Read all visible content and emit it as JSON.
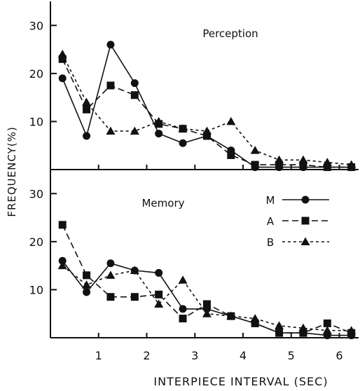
{
  "chart_data": [
    {
      "type": "line",
      "title": "Perception",
      "xlabel": "INTERPIECE INTERVAL (SEC)",
      "ylabel": "FREQUENCY(%)",
      "xlim": [
        0,
        6.4
      ],
      "ylim": [
        0,
        35
      ],
      "yticks": [
        10,
        20,
        30
      ],
      "xticks": [
        1,
        2,
        3,
        4,
        5,
        6
      ],
      "grid": false,
      "legend": "none",
      "series": [
        {
          "name": "M",
          "marker": "circle",
          "dash": "solid",
          "x": [
            0.25,
            0.75,
            1.25,
            1.75,
            2.25,
            2.75,
            3.25,
            3.75,
            4.25,
            4.75,
            5.25,
            5.75,
            6.25
          ],
          "y": [
            19,
            7,
            26,
            18,
            7.5,
            5.5,
            7,
            4,
            0.5,
            0.5,
            0.5,
            0.5,
            0.5
          ]
        },
        {
          "name": "A",
          "marker": "square",
          "dash": "dashed",
          "x": [
            0.25,
            0.75,
            1.25,
            1.75,
            2.25,
            2.75,
            3.25,
            3.75,
            4.25,
            4.75,
            5.25,
            5.75,
            6.25
          ],
          "y": [
            23,
            12.5,
            17.5,
            15.5,
            9.5,
            8.5,
            7,
            3,
            1,
            1,
            1,
            0.5,
            0.5
          ]
        },
        {
          "name": "B",
          "marker": "triangle",
          "dash": "dotted",
          "x": [
            0.25,
            0.75,
            1.25,
            1.75,
            2.25,
            2.75,
            3.25,
            3.75,
            4.25,
            4.75,
            5.25,
            5.75,
            6.25
          ],
          "y": [
            24,
            14,
            8,
            8,
            10,
            8.5,
            8,
            10,
            4,
            2,
            2,
            1.5,
            1
          ]
        }
      ]
    },
    {
      "type": "line",
      "title": "Memory",
      "xlabel": "INTERPIECE INTERVAL (SEC)",
      "ylabel": "FREQUENCY(%)",
      "xlim": [
        0,
        6.4
      ],
      "ylim": [
        0,
        35
      ],
      "yticks": [
        10,
        20,
        30
      ],
      "xticks": [
        1,
        2,
        3,
        4,
        5,
        6
      ],
      "xtick_labels": [
        "1",
        "2",
        "3",
        "4",
        "5",
        "6"
      ],
      "grid": false,
      "legend": "top-right",
      "series": [
        {
          "name": "M",
          "marker": "circle",
          "dash": "solid",
          "x": [
            0.25,
            0.75,
            1.25,
            1.75,
            2.25,
            2.75,
            3.25,
            3.75,
            4.25,
            4.75,
            5.25,
            5.75,
            6.25
          ],
          "y": [
            16,
            9.5,
            15.5,
            14,
            13.5,
            6,
            6,
            4.5,
            3,
            1,
            1,
            0.5,
            0.5
          ]
        },
        {
          "name": "A",
          "marker": "square",
          "dash": "dashed",
          "x": [
            0.25,
            0.75,
            1.25,
            1.75,
            2.25,
            2.75,
            3.25,
            3.75,
            4.25,
            4.75,
            5.25,
            5.75,
            6.25
          ],
          "y": [
            23.5,
            13,
            8.5,
            8.5,
            9,
            4,
            7,
            4.5,
            3,
            1,
            1,
            3,
            1
          ]
        },
        {
          "name": "B",
          "marker": "triangle",
          "dash": "dotted",
          "x": [
            0.25,
            0.75,
            1.25,
            1.75,
            2.25,
            2.75,
            3.25,
            3.75,
            4.25,
            4.75,
            5.25,
            5.75,
            6.25
          ],
          "y": [
            15,
            11,
            13,
            14,
            7,
            12,
            5,
            4.5,
            4,
            2.5,
            2,
            1.5,
            1.5
          ]
        }
      ]
    }
  ]
}
